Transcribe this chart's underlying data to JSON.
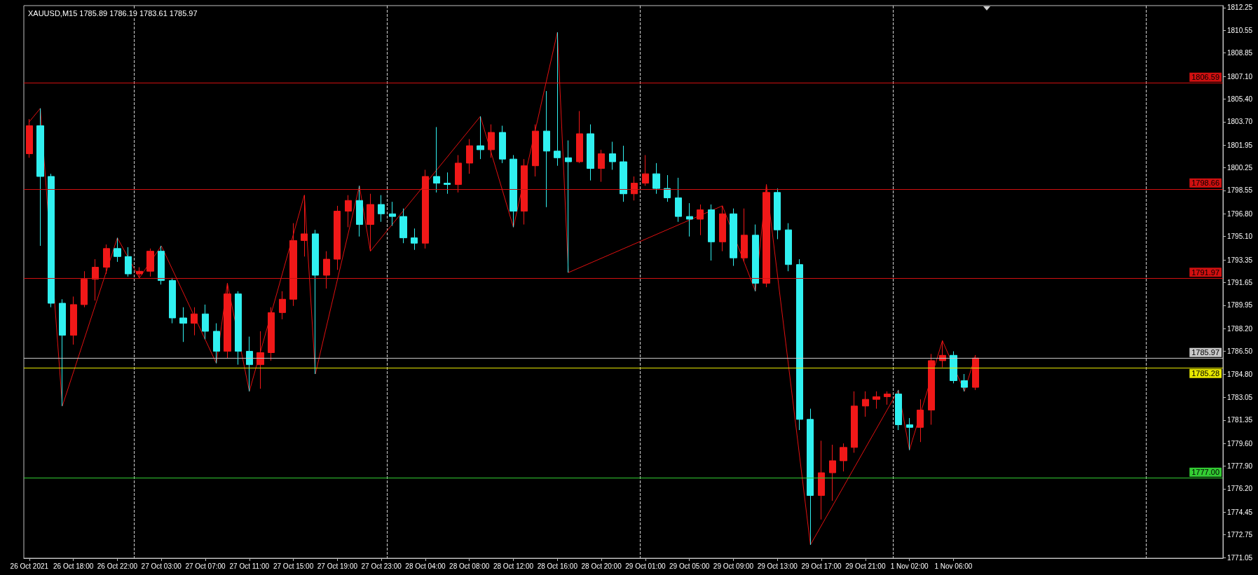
{
  "chart_data": {
    "type": "candlestick",
    "title": "XAUUSD,M15 1785.89 1786.19 1783.61 1785.97",
    "categories": [
      "26 Oct 2021",
      null,
      null,
      null,
      "26 Oct 18:00",
      null,
      null,
      null,
      "26 Oct 22:00",
      null,
      null,
      null,
      "27 Oct 03:00",
      null,
      null,
      null,
      "27 Oct 07:00",
      null,
      null,
      null,
      "27 Oct 11:00",
      null,
      null,
      null,
      "27 Oct 15:00",
      null,
      null,
      null,
      "27 Oct 19:00",
      null,
      null,
      null,
      "27 Oct 23:00",
      null,
      null,
      null,
      "28 Oct 04:00",
      null,
      null,
      null,
      "28 Oct 08:00",
      null,
      null,
      null,
      "28 Oct 12:00",
      null,
      null,
      null,
      "28 Oct 16:00",
      null,
      null,
      null,
      "28 Oct 20:00",
      null,
      null,
      null,
      "29 Oct 01:00",
      null,
      null,
      null,
      "29 Oct 05:00",
      null,
      null,
      null,
      "29 Oct 09:00",
      null,
      null,
      null,
      "29 Oct 13:00",
      null,
      null,
      null,
      "29 Oct 17:00",
      null,
      null,
      null,
      "29 Oct 21:00",
      null,
      null,
      null,
      "1 Nov 02:00",
      null,
      null,
      null,
      "1 Nov 06:00",
      null,
      null,
      null,
      null,
      null,
      null,
      null,
      null,
      null,
      null,
      null,
      null,
      null,
      null,
      null,
      null,
      null,
      null,
      null,
      null,
      null,
      null,
      null,
      null
    ],
    "ylim": [
      1771.0,
      1812.4
    ],
    "yticks": [
      1812.25,
      1810.55,
      1808.85,
      {
        "value": 1807.1,
        "label": "1807.10"
      },
      {
        "value": 1805.4,
        "label": "1805.40"
      },
      {
        "value": 1803.7,
        "label": "1803.70"
      },
      1801.95,
      1800.25,
      1798.55,
      {
        "value": 1796.8,
        "label": "1796.80"
      },
      {
        "value": 1795.1,
        "label": "1795.10"
      },
      1793.35,
      1791.65,
      1789.95,
      {
        "value": 1788.2,
        "label": "1788.20"
      },
      {
        "value": 1786.5,
        "label": "1786.50"
      },
      {
        "value": 1784.8,
        "label": "1784.80"
      },
      1783.05,
      1781.35,
      {
        "value": 1779.6,
        "label": "1779.60"
      },
      {
        "value": 1777.9,
        "label": "1777.90"
      },
      {
        "value": 1776.2,
        "label": "1776.20"
      },
      1774.45,
      1772.75,
      1771.05
    ],
    "grid": "x",
    "series": [
      {
        "ohlc": [
          [
            1801.3,
            1803.9,
            1801.0,
            1803.4
          ],
          [
            1803.4,
            1804.7,
            1794.4,
            1799.6
          ],
          [
            1799.6,
            1799.8,
            1789.8,
            1790.1
          ],
          [
            1790.1,
            1790.4,
            1782.4,
            1787.7
          ],
          [
            1787.7,
            1790.6,
            1787.0,
            1790.0
          ],
          [
            1790.0,
            1792.5,
            1789.8,
            1791.9
          ],
          [
            1791.9,
            1793.4,
            1790.3,
            1792.8
          ],
          [
            1792.8,
            1794.5,
            1792.3,
            1794.2
          ],
          [
            1794.2,
            1795.0,
            1793.2,
            1793.6
          ],
          [
            1793.6,
            1794.3,
            1792.1,
            1792.3
          ],
          [
            1792.3,
            1792.8,
            1792.0,
            1792.5
          ],
          [
            1792.5,
            1794.2,
            1792.1,
            1794.0
          ],
          [
            1794.0,
            1794.4,
            1791.5,
            1791.8
          ],
          [
            1791.8,
            1792.0,
            1788.6,
            1789.0
          ],
          [
            1789.0,
            1789.8,
            1787.2,
            1788.6
          ],
          [
            1788.6,
            1789.8,
            1787.7,
            1789.3
          ],
          [
            1789.3,
            1790.0,
            1787.4,
            1788.0
          ],
          [
            1788.0,
            1788.6,
            1785.6,
            1786.5
          ],
          [
            1786.5,
            1791.6,
            1786.0,
            1790.8
          ],
          [
            1790.8,
            1791.0,
            1785.5,
            1786.5
          ],
          [
            1786.5,
            1787.6,
            1783.5,
            1785.5
          ],
          [
            1785.5,
            1788.0,
            1783.7,
            1786.4
          ],
          [
            1786.4,
            1789.8,
            1785.8,
            1789.4
          ],
          [
            1789.4,
            1791.0,
            1788.9,
            1790.4
          ],
          [
            1790.4,
            1796.1,
            1789.9,
            1794.8
          ],
          [
            1794.8,
            1798.2,
            1793.6,
            1795.3
          ],
          [
            1795.3,
            1795.6,
            1784.8,
            1792.2
          ],
          [
            1792.2,
            1794.0,
            1791.2,
            1793.4
          ],
          [
            1793.4,
            1797.4,
            1792.6,
            1797.0
          ],
          [
            1797.0,
            1798.2,
            1795.8,
            1797.8
          ],
          [
            1797.8,
            1798.9,
            1795.1,
            1796.0
          ],
          [
            1796.0,
            1798.3,
            1794.0,
            1797.5
          ],
          [
            1797.5,
            1798.2,
            1796.2,
            1796.8
          ],
          [
            1796.8,
            1797.7,
            1795.9,
            1796.6
          ],
          [
            1796.6,
            1797.2,
            1794.6,
            1795.0
          ],
          [
            1795.0,
            1795.7,
            1794.1,
            1794.6
          ],
          [
            1794.6,
            1800.1,
            1794.2,
            1799.6
          ],
          [
            1799.6,
            1803.3,
            1798.4,
            1799.1
          ],
          [
            1799.1,
            1799.9,
            1798.3,
            1799.0
          ],
          [
            1799.0,
            1801.2,
            1798.4,
            1800.6
          ],
          [
            1800.6,
            1802.4,
            1799.8,
            1801.9
          ],
          [
            1801.9,
            1804.1,
            1800.9,
            1801.6
          ],
          [
            1801.6,
            1803.5,
            1801.0,
            1802.9
          ],
          [
            1802.9,
            1803.4,
            1800.6,
            1800.9
          ],
          [
            1800.9,
            1801.2,
            1795.8,
            1797.0
          ],
          [
            1797.0,
            1800.9,
            1796.0,
            1800.4
          ],
          [
            1800.4,
            1803.5,
            1799.6,
            1803.0
          ],
          [
            1803.0,
            1806.0,
            1797.3,
            1801.5
          ],
          [
            1801.5,
            1810.4,
            1800.4,
            1801.0
          ],
          [
            1801.0,
            1802.3,
            1792.4,
            1800.7
          ],
          [
            1800.7,
            1804.5,
            1800.6,
            1802.8
          ],
          [
            1802.8,
            1803.5,
            1799.3,
            1800.2
          ],
          [
            1800.2,
            1801.6,
            1799.2,
            1801.3
          ],
          [
            1801.3,
            1802.2,
            1800.1,
            1800.7
          ],
          [
            1800.7,
            1801.9,
            1797.7,
            1798.3
          ],
          [
            1798.3,
            1799.6,
            1797.8,
            1799.1
          ],
          [
            1799.1,
            1801.2,
            1798.9,
            1799.8
          ],
          [
            1799.8,
            1800.6,
            1798.3,
            1798.7
          ],
          [
            1798.7,
            1799.7,
            1797.7,
            1798.0
          ],
          [
            1798.0,
            1799.5,
            1796.2,
            1796.6
          ],
          [
            1796.6,
            1797.6,
            1795.1,
            1796.4
          ],
          [
            1796.4,
            1797.5,
            1795.2,
            1797.1
          ],
          [
            1797.1,
            1797.5,
            1793.3,
            1794.7
          ],
          [
            1794.7,
            1797.4,
            1794.0,
            1796.8
          ],
          [
            1796.8,
            1797.2,
            1792.9,
            1793.5
          ],
          [
            1793.5,
            1797.2,
            1793.2,
            1795.2
          ],
          [
            1795.2,
            1796.0,
            1791.0,
            1791.6
          ],
          [
            1791.6,
            1799.0,
            1791.3,
            1798.4
          ],
          [
            1798.4,
            1798.7,
            1794.9,
            1795.6
          ],
          [
            1795.6,
            1796.1,
            1792.5,
            1793.0
          ],
          [
            1793.0,
            1793.4,
            1780.6,
            1781.4
          ],
          [
            1781.4,
            1782.2,
            1772.0,
            1775.7
          ],
          [
            1775.7,
            1779.8,
            1773.9,
            1777.4
          ],
          [
            1777.4,
            1779.5,
            1775.3,
            1778.3
          ],
          [
            1778.3,
            1779.6,
            1777.5,
            1779.3
          ],
          [
            1779.3,
            1783.5,
            1778.9,
            1782.4
          ],
          [
            1782.4,
            1783.5,
            1781.6,
            1782.9
          ],
          [
            1782.9,
            1783.5,
            1782.2,
            1783.1
          ],
          [
            1783.1,
            1783.5,
            1782.5,
            1783.3
          ],
          [
            1783.3,
            1783.6,
            1780.6,
            1781.0
          ],
          [
            1781.0,
            1781.5,
            1779.1,
            1780.8
          ],
          [
            1780.8,
            1782.9,
            1779.7,
            1782.1
          ],
          [
            1782.1,
            1786.3,
            1781.0,
            1785.8
          ],
          [
            1785.8,
            1787.3,
            1785.3,
            1786.2
          ],
          [
            1786.2,
            1786.5,
            1784.1,
            1784.3
          ],
          [
            1784.3,
            1784.8,
            1783.5,
            1783.8
          ],
          [
            1783.8,
            1786.2,
            1783.6,
            1786.0
          ],
          null,
          null,
          null,
          null,
          null,
          null,
          null,
          null,
          null,
          null,
          null,
          null,
          null,
          null,
          null,
          null,
          null,
          null,
          null,
          null,
          null,
          null
        ],
        "colors": [
          "#f01818",
          "#30f0f0",
          "#30f0f0",
          "#30f0f0",
          "#f01818",
          "#f01818",
          "#f01818",
          "#f01818",
          "#30f0f0",
          "#30f0f0",
          "#f01818",
          "#f01818",
          "#30f0f0",
          "#30f0f0",
          "#30f0f0",
          "#f01818",
          "#30f0f0",
          "#30f0f0",
          "#f01818",
          "#30f0f0",
          "#30f0f0",
          "#f01818",
          "#f01818",
          "#f01818",
          "#f01818",
          "#f01818",
          "#30f0f0",
          "#f01818",
          "#f01818",
          "#f01818",
          "#30f0f0",
          "#f01818",
          "#30f0f0",
          "#30f0f0",
          "#30f0f0",
          "#30f0f0",
          "#f01818",
          "#30f0f0",
          "#30f0f0",
          "#f01818",
          "#f01818",
          "#30f0f0",
          "#f01818",
          "#30f0f0",
          "#30f0f0",
          "#f01818",
          "#f01818",
          "#30f0f0",
          "#30f0f0",
          "#30f0f0",
          "#f01818",
          "#30f0f0",
          "#f01818",
          "#30f0f0",
          "#30f0f0",
          "#f01818",
          "#f01818",
          "#30f0f0",
          "#30f0f0",
          "#30f0f0",
          "#30f0f0",
          "#f01818",
          "#30f0f0",
          "#f01818",
          "#30f0f0",
          "#f01818",
          "#30f0f0",
          "#f01818",
          "#30f0f0",
          "#30f0f0",
          "#30f0f0",
          "#30f0f0",
          "#f01818",
          "#f01818",
          "#f01818",
          "#f01818",
          "#f01818",
          "#f01818",
          "#f01818",
          "#30f0f0",
          "#30f0f0",
          "#f01818",
          "#f01818",
          "#f01818",
          "#30f0f0",
          "#30f0f0",
          "#f01818",
          null,
          null,
          null,
          null,
          null,
          null,
          null,
          null,
          null,
          null,
          null,
          null,
          null,
          null,
          null,
          null,
          null,
          null,
          null,
          null,
          null,
          null
        ]
      },
      {
        "type": "line",
        "color": "#e01010",
        "values": [
          1803.7,
          1804.7,
          null,
          1782.4,
          null,
          null,
          null,
          null,
          1795.0,
          null,
          1792.0,
          null,
          1794.4,
          null,
          null,
          null,
          null,
          1785.6,
          1791.6,
          null,
          1783.5,
          null,
          null,
          null,
          null,
          1798.2,
          1784.8,
          null,
          null,
          null,
          1798.9,
          1794.0,
          null,
          null,
          null,
          null,
          null,
          null,
          null,
          null,
          null,
          1804.1,
          null,
          null,
          1795.8,
          null,
          null,
          null,
          1810.4,
          1792.4,
          null,
          null,
          null,
          null,
          null,
          null,
          null,
          null,
          null,
          null,
          null,
          null,
          null,
          1797.4,
          null,
          null,
          1791.0,
          1799.0,
          null,
          null,
          null,
          1772.0,
          null,
          null,
          null,
          null,
          null,
          null,
          null,
          1783.6,
          1779.1,
          null,
          null,
          1787.3,
          null,
          1783.5,
          1786.2,
          null,
          null,
          null,
          null,
          null,
          null,
          null,
          null,
          null,
          null,
          null,
          null,
          null,
          null,
          null,
          null,
          null,
          null,
          null,
          null,
          null,
          null
        ]
      }
    ],
    "ref_lines": [
      {
        "axis": "y",
        "value": 1806.59,
        "label": "1806.59",
        "color": "#d01010"
      },
      {
        "axis": "y",
        "value": 1798.66,
        "label": "1798.66",
        "color": "#d01010"
      },
      {
        "axis": "y",
        "value": 1791.97,
        "label": "1791.97",
        "color": "#d01010"
      },
      {
        "axis": "y",
        "value": 1785.97,
        "label": "1785.97",
        "color": "#c8c8c8"
      },
      {
        "axis": "y",
        "value": 1785.28,
        "label": "1785.28",
        "color": "#e8e800"
      },
      {
        "axis": "y",
        "value": 1777.0,
        "label": "1777.00",
        "color": "#33cc33"
      }
    ]
  }
}
